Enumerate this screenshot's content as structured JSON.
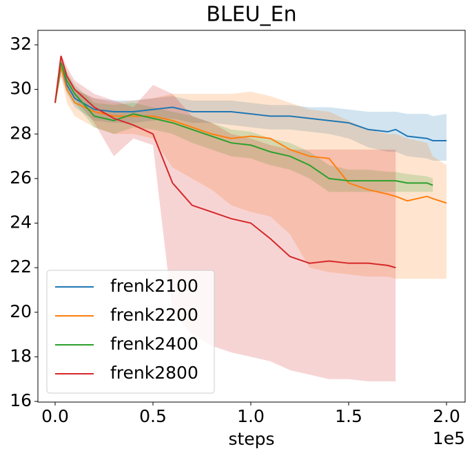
{
  "chart_data": {
    "type": "line",
    "title": "BLEU_En",
    "xlabel": "steps",
    "x_offset_label": "1e5",
    "x": [
      0,
      3000,
      6000,
      10000,
      20000,
      30000,
      40000,
      50000,
      60000,
      70000,
      80000,
      90000,
      100000,
      110000,
      120000,
      130000,
      140000,
      150000,
      160000,
      170000,
      174000,
      180000,
      190000,
      193000,
      200000
    ],
    "xlim": [
      -8800,
      209500
    ],
    "xticks": [
      {
        "value": 0,
        "label": "0.0"
      },
      {
        "value": 50000,
        "label": "0.5"
      },
      {
        "value": 100000,
        "label": "1.0"
      },
      {
        "value": 150000,
        "label": "1.5"
      },
      {
        "value": 200000,
        "label": "2.0"
      }
    ],
    "ylim": [
      15.97,
      32.65
    ],
    "yticks": [
      16,
      18,
      20,
      22,
      24,
      26,
      28,
      30,
      32
    ],
    "legend": "lower left",
    "band_opacity": 0.2,
    "series": [
      {
        "name": "frenk2100",
        "color": "#1f77b4",
        "values": [
          29.4,
          31.0,
          30.2,
          29.6,
          29.1,
          29.0,
          29.0,
          29.1,
          29.2,
          29.0,
          29.0,
          29.0,
          28.9,
          28.8,
          28.8,
          28.7,
          28.6,
          28.5,
          28.2,
          28.1,
          28.2,
          27.9,
          27.8,
          27.7,
          27.7
        ],
        "lower": [
          29.3,
          30.6,
          29.8,
          29.2,
          28.6,
          28.5,
          28.5,
          28.6,
          28.7,
          28.5,
          28.5,
          28.4,
          28.3,
          28.2,
          28.2,
          28.1,
          28.0,
          27.8,
          27.4,
          27.2,
          27.2,
          27.0,
          26.9,
          26.8,
          26.8
        ],
        "upper": [
          29.5,
          31.4,
          30.6,
          30.0,
          29.6,
          29.5,
          29.5,
          29.6,
          29.7,
          29.5,
          29.5,
          29.5,
          29.4,
          29.3,
          29.3,
          29.2,
          29.2,
          29.1,
          29.0,
          29.0,
          29.0,
          28.9,
          28.9,
          28.8,
          28.9
        ]
      },
      {
        "name": "frenk2200",
        "color": "#ff7f0e",
        "values": [
          29.4,
          31.0,
          30.0,
          29.4,
          29.0,
          28.8,
          28.8,
          28.8,
          28.6,
          28.3,
          28.0,
          27.8,
          27.9,
          27.8,
          27.3,
          27.0,
          26.9,
          25.8,
          25.5,
          25.3,
          25.2,
          25.0,
          25.2,
          25.1,
          24.9
        ],
        "lower": [
          29.3,
          30.6,
          29.4,
          28.8,
          28.3,
          28.0,
          28.0,
          27.8,
          26.5,
          26.0,
          25.5,
          24.8,
          24.5,
          24.3,
          23.5,
          22.0,
          21.8,
          21.7,
          21.6,
          21.6,
          21.5,
          21.5,
          21.5,
          21.5,
          21.5
        ],
        "upper": [
          29.5,
          31.4,
          30.6,
          30.0,
          29.6,
          29.4,
          29.5,
          29.6,
          29.8,
          29.8,
          29.8,
          29.8,
          29.9,
          29.7,
          29.4,
          29.1,
          29.0,
          28.6,
          28.2,
          28.0,
          28.0,
          27.8,
          27.6,
          27.0,
          26.6
        ]
      },
      {
        "name": "frenk2400",
        "color": "#2ca02c",
        "values": [
          29.4,
          31.2,
          30.4,
          29.8,
          28.8,
          28.6,
          28.9,
          28.7,
          28.5,
          28.2,
          27.9,
          27.6,
          27.5,
          27.2,
          27.0,
          26.6,
          26.0,
          25.9,
          25.9,
          25.9,
          25.9,
          25.8,
          25.8,
          25.7,
          null
        ],
        "lower": [
          29.3,
          30.9,
          30.0,
          29.4,
          28.3,
          28.0,
          28.3,
          28.2,
          28.0,
          27.6,
          27.3,
          27.0,
          26.9,
          26.6,
          26.4,
          26.0,
          25.4,
          25.4,
          25.4,
          25.4,
          25.4,
          25.4,
          25.4,
          25.4,
          null
        ],
        "upper": [
          29.5,
          31.5,
          30.8,
          30.2,
          29.4,
          29.3,
          29.4,
          29.2,
          29.0,
          28.8,
          28.5,
          28.2,
          28.1,
          27.8,
          27.6,
          27.2,
          26.6,
          26.4,
          26.4,
          26.3,
          26.3,
          26.2,
          26.1,
          26.0,
          null
        ]
      },
      {
        "name": "frenk2800",
        "color": "#d62728",
        "values": [
          29.4,
          31.5,
          30.6,
          30.0,
          29.2,
          28.7,
          28.4,
          28.0,
          25.8,
          24.8,
          24.5,
          24.2,
          24.0,
          23.3,
          22.5,
          22.2,
          22.3,
          22.2,
          22.2,
          22.1,
          22.0,
          null,
          null,
          null,
          null
        ],
        "lower": [
          29.3,
          31.3,
          30.2,
          29.6,
          28.5,
          27.0,
          27.8,
          27.5,
          20.0,
          19.0,
          18.5,
          18.2,
          18.0,
          17.8,
          17.4,
          17.2,
          17.0,
          17.0,
          16.9,
          16.9,
          16.9,
          null,
          null,
          null,
          null
        ],
        "upper": [
          29.5,
          31.6,
          31.0,
          30.4,
          29.8,
          29.5,
          29.2,
          30.2,
          29.8,
          28.8,
          28.5,
          28.0,
          27.8,
          27.5,
          27.3,
          27.3,
          27.3,
          27.3,
          27.3,
          27.3,
          27.3,
          null,
          null,
          null,
          null
        ]
      }
    ]
  }
}
